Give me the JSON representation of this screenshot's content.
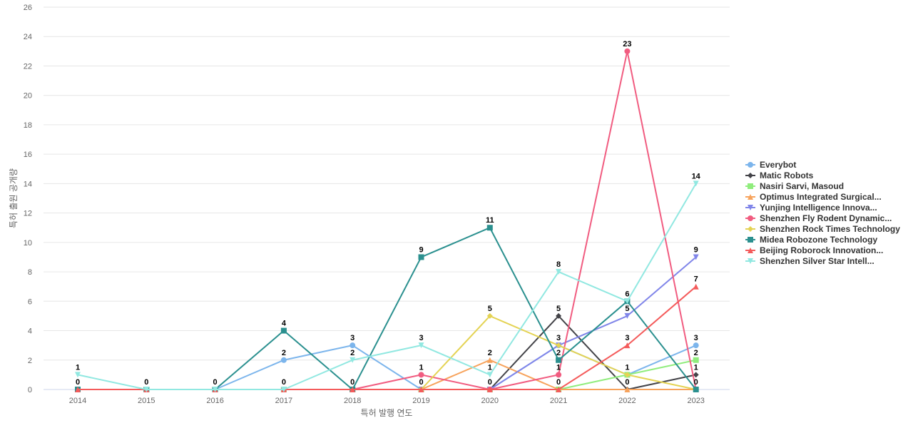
{
  "chart_data": {
    "type": "line",
    "title": "",
    "xlabel": "특허 발행 연도",
    "ylabel": "특허 출원 공개량",
    "x": [
      2014,
      2015,
      2016,
      2017,
      2018,
      2019,
      2020,
      2021,
      2022,
      2023
    ],
    "ylim": [
      0,
      26
    ],
    "yticks": [
      0,
      2,
      4,
      6,
      8,
      10,
      12,
      14,
      16,
      18,
      20,
      22,
      24,
      26
    ],
    "grid": true,
    "legend_position": "right",
    "series": [
      {
        "name": "Everybot",
        "color": "#7cb5ec",
        "marker": "circle",
        "values": [
          0,
          0,
          0,
          2,
          3,
          0,
          0,
          3,
          1,
          3
        ],
        "labeled": [
          null,
          null,
          null,
          true,
          true,
          null,
          null,
          null,
          null,
          true
        ]
      },
      {
        "name": "Matic Robots",
        "color": "#434348",
        "marker": "diamond",
        "values": [
          0,
          0,
          0,
          0,
          0,
          0,
          0,
          5,
          0,
          1
        ],
        "labeled": [
          null,
          null,
          null,
          null,
          null,
          null,
          null,
          true,
          null,
          true
        ]
      },
      {
        "name": "Nasiri Sarvi, Masoud",
        "color": "#90ed7d",
        "marker": "square",
        "values": [
          0,
          0,
          0,
          0,
          0,
          0,
          0,
          0,
          1,
          2
        ],
        "labeled": [
          null,
          null,
          null,
          null,
          null,
          null,
          null,
          null,
          null,
          true
        ]
      },
      {
        "name": "Optimus Integrated Surgical...",
        "color": "#f7a35c",
        "marker": "triangle",
        "values": [
          0,
          0,
          0,
          0,
          0,
          0,
          2,
          0,
          0,
          0
        ],
        "labeled": [
          null,
          null,
          null,
          null,
          null,
          null,
          true,
          null,
          true,
          null
        ]
      },
      {
        "name": "Yunjing Intelligence Innova...",
        "color": "#8085e9",
        "marker": "triangle-down",
        "values": [
          0,
          0,
          0,
          0,
          0,
          0,
          0,
          3,
          5,
          9
        ],
        "labeled": [
          null,
          null,
          null,
          null,
          null,
          null,
          null,
          true,
          true,
          true
        ]
      },
      {
        "name": "Shenzhen Fly Rodent Dynamic...",
        "color": "#f15c80",
        "marker": "circle",
        "values": [
          0,
          0,
          0,
          0,
          0,
          1,
          0,
          1,
          23,
          0
        ],
        "labeled": [
          null,
          null,
          null,
          null,
          null,
          true,
          true,
          true,
          true,
          true
        ]
      },
      {
        "name": "Shenzhen Rock Times Technology",
        "color": "#e4d354",
        "marker": "diamond",
        "values": [
          0,
          0,
          0,
          0,
          0,
          0,
          5,
          3,
          1,
          0
        ],
        "labeled": [
          null,
          null,
          null,
          null,
          null,
          true,
          true,
          null,
          true,
          null
        ]
      },
      {
        "name": "Midea Robozone Technology",
        "color": "#2b908f",
        "marker": "square",
        "values": [
          0,
          0,
          0,
          4,
          0,
          9,
          11,
          2,
          6,
          0
        ],
        "labeled": [
          true,
          null,
          true,
          true,
          true,
          true,
          true,
          true,
          true,
          null
        ]
      },
      {
        "name": "Beijing Roborock Innovation...",
        "color": "#f45b5b",
        "marker": "triangle",
        "values": [
          0,
          0,
          0,
          0,
          0,
          0,
          0,
          0,
          3,
          7
        ],
        "labeled": [
          null,
          null,
          null,
          true,
          null,
          null,
          null,
          true,
          true,
          true
        ]
      },
      {
        "name": "Shenzhen Silver Star Intell...",
        "color": "#91e8e1",
        "marker": "triangle-down",
        "values": [
          1,
          0,
          0,
          0,
          2,
          3,
          1,
          8,
          6,
          14
        ],
        "labeled": [
          true,
          true,
          null,
          null,
          true,
          true,
          true,
          true,
          null,
          true
        ]
      }
    ]
  }
}
